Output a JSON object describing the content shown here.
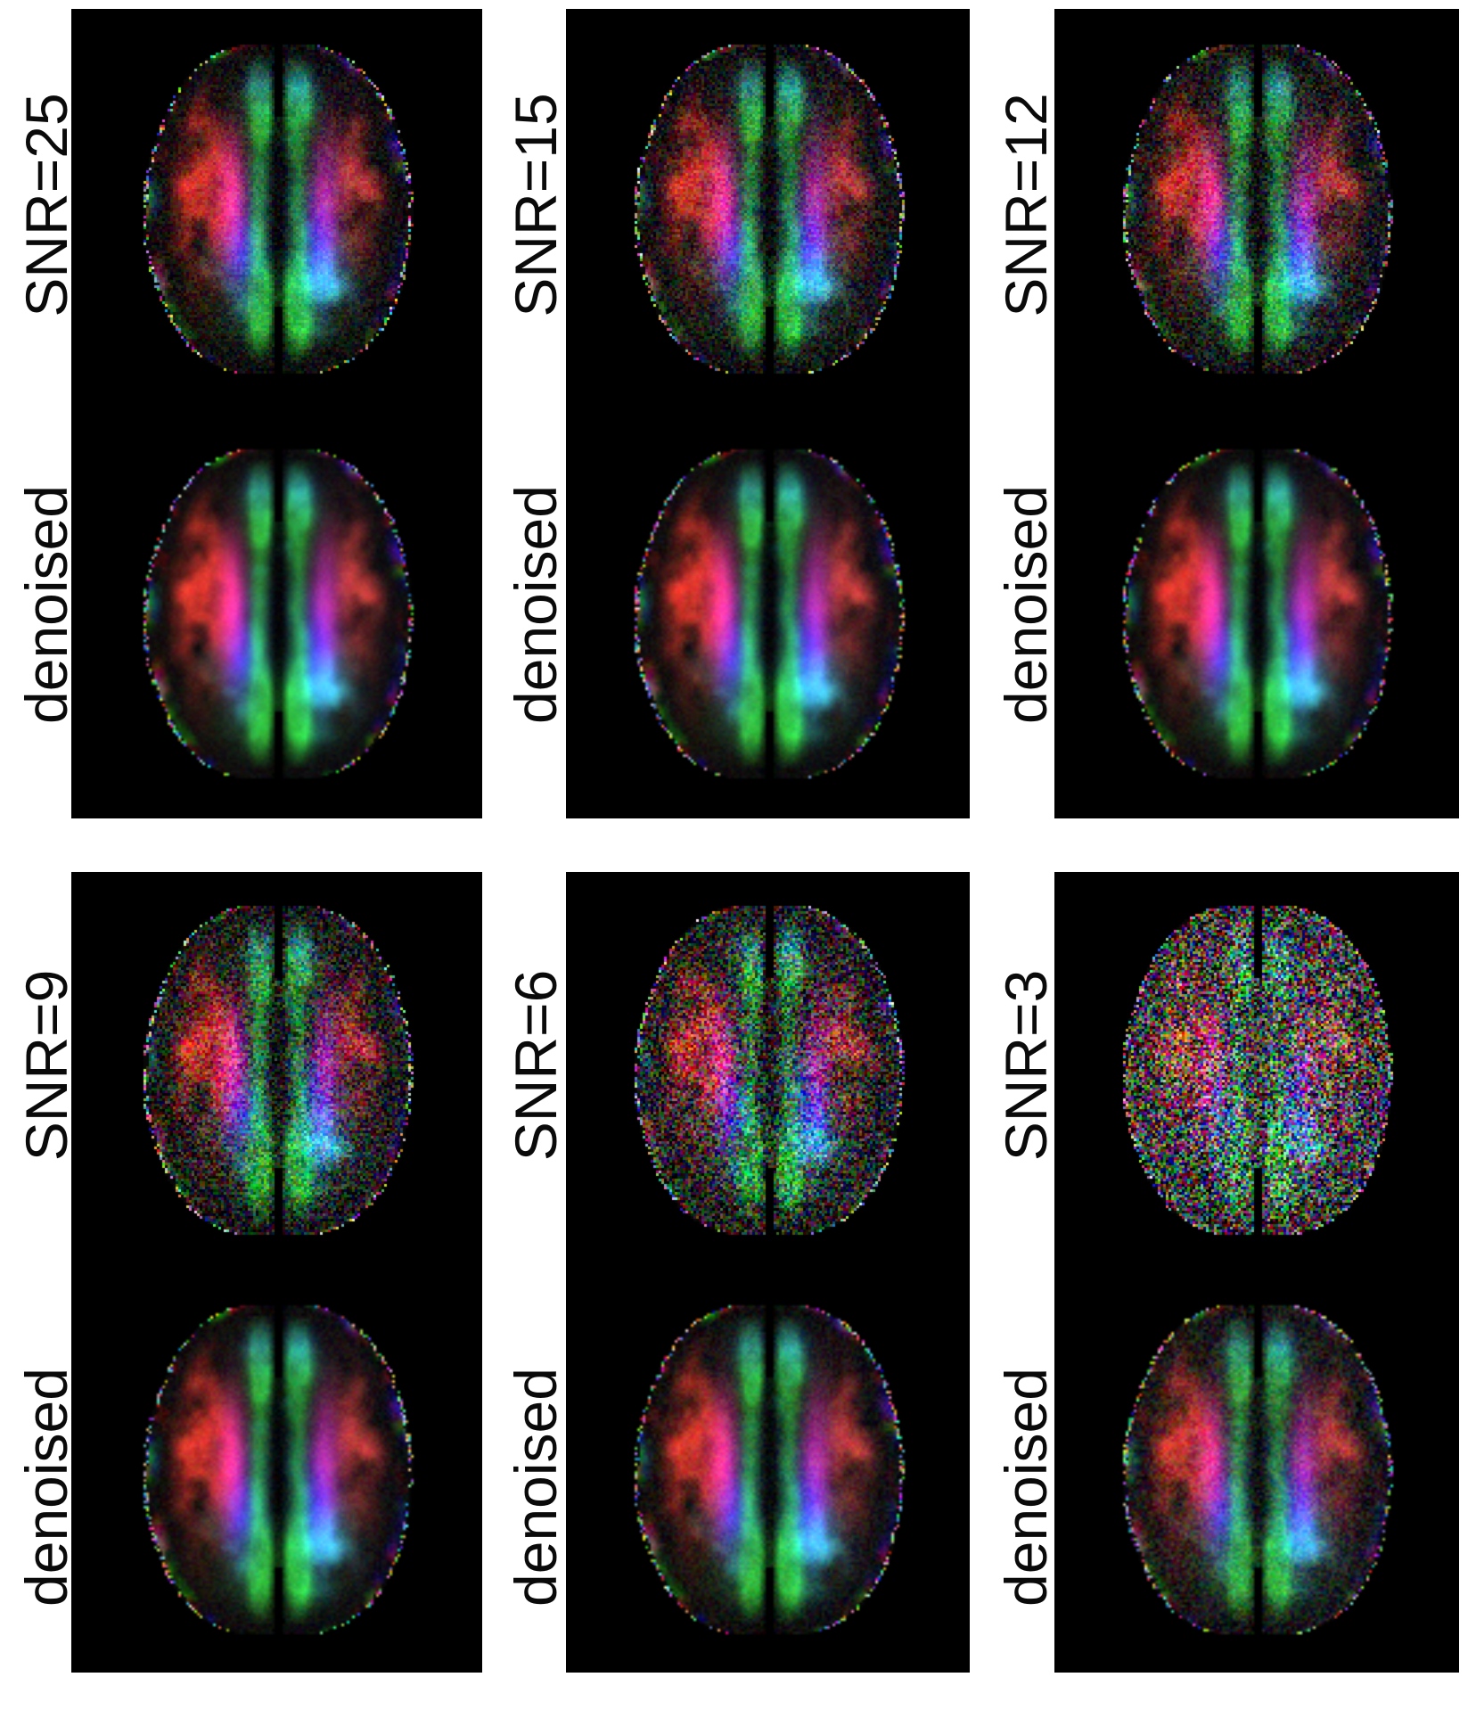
{
  "figure": {
    "page_bg": "#ffffff",
    "panel_bg": "#000000",
    "label_color": "#0a0a0a",
    "palette": {
      "tract_green": "#55c846",
      "corona_magenta": "#c02896",
      "crossing_blue": "#3846d2",
      "association_red": "#cd3728",
      "posterior_cyan": "#4fb9ac"
    },
    "panels": [
      {
        "snr_label": "SNR=25",
        "denoised_label": "denoised",
        "noisy": {
          "gain": 1.0,
          "brightness": 0,
          "noise": 0.1
        },
        "denoised": {
          "gain": 1.05,
          "brightness": 0,
          "noise": 0.03
        }
      },
      {
        "snr_label": "SNR=15",
        "denoised_label": "denoised",
        "noisy": {
          "gain": 0.95,
          "brightness": 4,
          "noise": 0.15
        },
        "denoised": {
          "gain": 1.05,
          "brightness": 0,
          "noise": 0.04
        }
      },
      {
        "snr_label": "SNR=12",
        "denoised_label": "denoised",
        "noisy": {
          "gain": 0.92,
          "brightness": 6,
          "noise": 0.19
        },
        "denoised": {
          "gain": 1.05,
          "brightness": 0,
          "noise": 0.04
        }
      },
      {
        "snr_label": "SNR=9",
        "denoised_label": "denoised",
        "noisy": {
          "gain": 0.88,
          "brightness": 8,
          "noise": 0.26
        },
        "denoised": {
          "gain": 1.02,
          "brightness": 0,
          "noise": 0.05
        }
      },
      {
        "snr_label": "SNR=6",
        "denoised_label": "denoised",
        "noisy": {
          "gain": 0.8,
          "brightness": 12,
          "noise": 0.36
        },
        "denoised": {
          "gain": 1.0,
          "brightness": 2,
          "noise": 0.07
        }
      },
      {
        "snr_label": "SNR=3",
        "denoised_label": "denoised",
        "noisy": {
          "gain": 0.55,
          "brightness": 40,
          "noise": 0.55
        },
        "denoised": {
          "gain": 0.9,
          "brightness": 10,
          "noise": 0.13
        }
      }
    ]
  }
}
